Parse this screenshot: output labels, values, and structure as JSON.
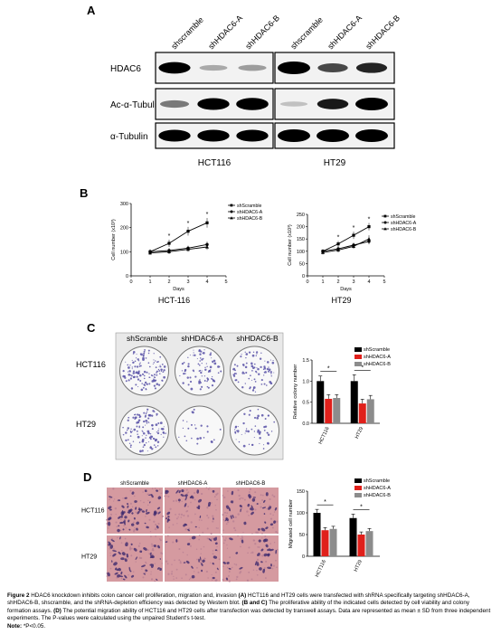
{
  "panelA": {
    "letter": "A",
    "lanes": [
      "shscramble",
      "shHDAC6-A",
      "shHDAC6-B",
      "shscramble",
      "shHDAC6-A",
      "shHDAC6-B"
    ],
    "rows": [
      "HDAC6",
      "Ac-α-Tubulin",
      "α-Tubulin"
    ],
    "cell_lines": [
      "HCT116",
      "HT29"
    ],
    "intensity": {
      "HDAC6": [
        0.85,
        0.15,
        0.2,
        1.0,
        0.55,
        0.7
      ],
      "Ac-α-Tubulin": [
        0.35,
        0.9,
        0.95,
        0.05,
        0.75,
        1.0
      ],
      "α-Tubulin": [
        0.9,
        0.9,
        0.9,
        1.0,
        1.0,
        1.0
      ]
    }
  },
  "panelB": {
    "letter": "B",
    "ylabel": "Cell number (x10³)",
    "xlabel": "Days",
    "legend": [
      "shScramble",
      "shHDAC6-A",
      "shHDAC6-B"
    ],
    "titles": [
      "HCT-116",
      "HT29"
    ]
  },
  "panelC": {
    "letter": "C",
    "columns": [
      "shScramble",
      "shHDAC6-A",
      "shHDAC6-B"
    ],
    "rows": [
      "HCT116",
      "HT29"
    ],
    "legend": [
      "shScramble",
      "shHDAC6-A",
      "shHDAC6-B"
    ],
    "ylabel": "Relative colony number"
  },
  "panelD": {
    "letter": "D",
    "columns": [
      "shScramble",
      "shHDAC6-A",
      "shHDAC6-B"
    ],
    "rows": [
      "HCT116",
      "HT29"
    ],
    "legend": [
      "shScramble",
      "shHDAC6-A",
      "shHDAC6-B"
    ],
    "ylabel": "Migrated cell number"
  },
  "colors": {
    "scramble": "#000000",
    "hdacA": "#e0201b",
    "hdacB": "#8c8c8c",
    "transwell": "#d59aa0"
  },
  "chart_data": [
    {
      "type": "line",
      "title": "HCT-116",
      "xlabel": "Days",
      "ylabel": "Cell number (x10³)",
      "xlim": [
        0,
        5
      ],
      "ylim": [
        0,
        300
      ],
      "xticks": [
        0,
        1,
        2,
        3,
        4,
        5
      ],
      "yticks": [
        0,
        100,
        200,
        300
      ],
      "x": [
        1,
        2,
        3,
        4
      ],
      "series": [
        {
          "name": "shScramble",
          "values": [
            100,
            135,
            185,
            220
          ],
          "err": [
            10,
            15,
            18,
            20
          ]
        },
        {
          "name": "shHDAC6-A",
          "values": [
            100,
            105,
            115,
            130
          ],
          "err": [
            8,
            10,
            10,
            12
          ]
        },
        {
          "name": "shHDAC6-B",
          "values": [
            95,
            100,
            110,
            120
          ],
          "err": [
            8,
            10,
            10,
            12
          ]
        }
      ],
      "annotations": [
        "*",
        "*",
        "*"
      ]
    },
    {
      "type": "line",
      "title": "HT29",
      "xlabel": "Days",
      "ylabel": "Cell number (x10³)",
      "xlim": [
        0,
        5
      ],
      "ylim": [
        0,
        250
      ],
      "xticks": [
        0,
        1,
        2,
        3,
        4,
        5
      ],
      "yticks": [
        0,
        50,
        100,
        150,
        200,
        250
      ],
      "x": [
        1,
        2,
        3,
        4
      ],
      "series": [
        {
          "name": "shScramble",
          "values": [
            100,
            130,
            165,
            200
          ],
          "err": [
            8,
            12,
            15,
            15
          ]
        },
        {
          "name": "shHDAC6-A",
          "values": [
            100,
            110,
            125,
            140
          ],
          "err": [
            8,
            10,
            10,
            12
          ]
        },
        {
          "name": "shHDAC6-B",
          "values": [
            95,
            105,
            120,
            150
          ],
          "err": [
            8,
            10,
            10,
            15
          ]
        }
      ],
      "annotations": [
        "*",
        "*",
        "*"
      ]
    },
    {
      "type": "bar",
      "ylabel": "Relative colony number",
      "categories": [
        "HCT116",
        "HT29"
      ],
      "ylim": [
        0,
        1.5
      ],
      "yticks": [
        0.0,
        0.5,
        1.0,
        1.5
      ],
      "series": [
        {
          "name": "shScramble",
          "values": [
            1.0,
            1.0
          ],
          "err": [
            0.12,
            0.15
          ]
        },
        {
          "name": "shHDAC6-A",
          "values": [
            0.58,
            0.47
          ],
          "err": [
            0.1,
            0.1
          ]
        },
        {
          "name": "shHDAC6-B",
          "values": [
            0.6,
            0.57
          ],
          "err": [
            0.08,
            0.09
          ]
        }
      ],
      "annotations": [
        "*",
        "*"
      ]
    },
    {
      "type": "bar",
      "ylabel": "Migrated cell number",
      "categories": [
        "HCT116",
        "HT29"
      ],
      "ylim": [
        0,
        150
      ],
      "yticks": [
        0,
        50,
        100,
        150
      ],
      "series": [
        {
          "name": "shScramble",
          "values": [
            100,
            88
          ],
          "err": [
            8,
            9
          ]
        },
        {
          "name": "shHDAC6-A",
          "values": [
            60,
            50
          ],
          "err": [
            6,
            6
          ]
        },
        {
          "name": "shHDAC6-B",
          "values": [
            63,
            58
          ],
          "err": [
            6,
            6
          ]
        }
      ],
      "annotations": [
        "*",
        "*"
      ]
    }
  ],
  "caption": {
    "label": "Figure 2",
    "text": " HDAC6 knockdown inhibits colon cancer cell proliferation, migration and, invasion ",
    "a_label": "(A)",
    "a_text": " HCT116 and HT29 cells were transfected with shRNA specifically targeting shHDAC6-A, shHDAC6-B, shscramble, and the shRNA-depletion efficiency was detected by Western blot. ",
    "bc_label": "(B and C)",
    "bc_text": " The proliferative ability of the indicated cells detected by cell viability and colony formation assays. ",
    "d_label": "(D)",
    "d_text": " The potential migration ability of HCT116 and HT29 cells after transfection was detected by transwell assays. Data are represented as mean ± SD from three independent experiments. The P-values were calculated using the unpaired Student's t-test.",
    "note_label": "Note:",
    "note_text": " *P<0.05."
  }
}
